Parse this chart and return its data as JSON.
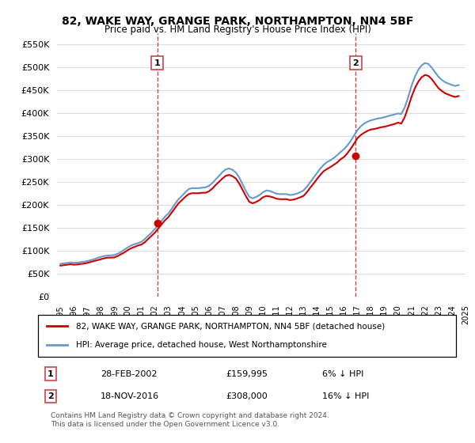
{
  "title": "82, WAKE WAY, GRANGE PARK, NORTHAMPTON, NN4 5BF",
  "subtitle": "Price paid vs. HM Land Registry's House Price Index (HPI)",
  "xlabel": "",
  "ylabel": "",
  "ylim": [
    0,
    575000
  ],
  "yticks": [
    0,
    50000,
    100000,
    150000,
    200000,
    250000,
    300000,
    350000,
    400000,
    450000,
    500000,
    550000
  ],
  "background_color": "#ffffff",
  "grid_color": "#dddddd",
  "sale1_date_idx": 7.17,
  "sale1_value": 159995,
  "sale2_date_idx": 21.88,
  "sale2_value": 308000,
  "legend_label_red": "82, WAKE WAY, GRANGE PARK, NORTHAMPTON, NN4 5BF (detached house)",
  "legend_label_blue": "HPI: Average price, detached house, West Northamptonshire",
  "annotation1_label": "1",
  "annotation1_date": "28-FEB-2002",
  "annotation1_price": "£159,995",
  "annotation1_pct": "6% ↓ HPI",
  "annotation2_label": "2",
  "annotation2_date": "18-NOV-2016",
  "annotation2_price": "£308,000",
  "annotation2_pct": "16% ↓ HPI",
  "footer": "Contains HM Land Registry data © Crown copyright and database right 2024.\nThis data is licensed under the Open Government Licence v3.0.",
  "hpi_x": [
    1995.0,
    1995.25,
    1995.5,
    1995.75,
    1996.0,
    1996.25,
    1996.5,
    1996.75,
    1997.0,
    1997.25,
    1997.5,
    1997.75,
    1998.0,
    1998.25,
    1998.5,
    1998.75,
    1999.0,
    1999.25,
    1999.5,
    1999.75,
    2000.0,
    2000.25,
    2000.5,
    2000.75,
    2001.0,
    2001.25,
    2001.5,
    2001.75,
    2002.0,
    2002.25,
    2002.5,
    2002.75,
    2003.0,
    2003.25,
    2003.5,
    2003.75,
    2004.0,
    2004.25,
    2004.5,
    2004.75,
    2005.0,
    2005.25,
    2005.5,
    2005.75,
    2006.0,
    2006.25,
    2006.5,
    2006.75,
    2007.0,
    2007.25,
    2007.5,
    2007.75,
    2008.0,
    2008.25,
    2008.5,
    2008.75,
    2009.0,
    2009.25,
    2009.5,
    2009.75,
    2010.0,
    2010.25,
    2010.5,
    2010.75,
    2011.0,
    2011.25,
    2011.5,
    2011.75,
    2012.0,
    2012.25,
    2012.5,
    2012.75,
    2013.0,
    2013.25,
    2013.5,
    2013.75,
    2014.0,
    2014.25,
    2014.5,
    2014.75,
    2015.0,
    2015.25,
    2015.5,
    2015.75,
    2016.0,
    2016.25,
    2016.5,
    2016.75,
    2017.0,
    2017.25,
    2017.5,
    2017.75,
    2018.0,
    2018.25,
    2018.5,
    2018.75,
    2019.0,
    2019.25,
    2019.5,
    2019.75,
    2020.0,
    2020.25,
    2020.5,
    2020.75,
    2021.0,
    2021.25,
    2021.5,
    2021.75,
    2022.0,
    2022.25,
    2022.5,
    2022.75,
    2023.0,
    2023.25,
    2023.5,
    2023.75,
    2024.0,
    2024.25,
    2024.5
  ],
  "hpi_y": [
    72000,
    73000,
    74000,
    75000,
    74000,
    74500,
    75500,
    76500,
    78000,
    80000,
    82000,
    85000,
    87000,
    89000,
    90000,
    90500,
    91000,
    94000,
    98000,
    103000,
    108000,
    112000,
    115000,
    117000,
    120000,
    126000,
    133000,
    140000,
    148000,
    157000,
    166000,
    175000,
    182000,
    192000,
    203000,
    213000,
    220000,
    228000,
    235000,
    237000,
    237000,
    237000,
    238000,
    239000,
    242000,
    248000,
    256000,
    264000,
    272000,
    278000,
    280000,
    277000,
    271000,
    260000,
    245000,
    230000,
    218000,
    215000,
    218000,
    222000,
    228000,
    232000,
    231000,
    228000,
    225000,
    224000,
    224000,
    224000,
    222000,
    223000,
    225000,
    228000,
    232000,
    240000,
    250000,
    260000,
    270000,
    280000,
    288000,
    294000,
    298000,
    303000,
    309000,
    316000,
    322000,
    330000,
    340000,
    352000,
    364000,
    372000,
    378000,
    382000,
    385000,
    387000,
    389000,
    390000,
    392000,
    394000,
    396000,
    398000,
    400000,
    399000,
    413000,
    435000,
    460000,
    480000,
    495000,
    505000,
    510000,
    508000,
    500000,
    490000,
    480000,
    473000,
    468000,
    465000,
    462000,
    460000,
    462000
  ],
  "price_x": [
    1995.0,
    1995.25,
    1995.5,
    1995.75,
    1996.0,
    1996.25,
    1996.5,
    1996.75,
    1997.0,
    1997.25,
    1997.5,
    1997.75,
    1998.0,
    1998.25,
    1998.5,
    1998.75,
    1999.0,
    1999.25,
    1999.5,
    1999.75,
    2000.0,
    2000.25,
    2000.5,
    2000.75,
    2001.0,
    2001.25,
    2001.5,
    2001.75,
    2002.0,
    2002.25,
    2002.5,
    2002.75,
    2003.0,
    2003.25,
    2003.5,
    2003.75,
    2004.0,
    2004.25,
    2004.5,
    2004.75,
    2005.0,
    2005.25,
    2005.5,
    2005.75,
    2006.0,
    2006.25,
    2006.5,
    2006.75,
    2007.0,
    2007.25,
    2007.5,
    2007.75,
    2008.0,
    2008.25,
    2008.5,
    2008.75,
    2009.0,
    2009.25,
    2009.5,
    2009.75,
    2010.0,
    2010.25,
    2010.5,
    2010.75,
    2011.0,
    2011.25,
    2011.5,
    2011.75,
    2012.0,
    2012.25,
    2012.5,
    2012.75,
    2013.0,
    2013.25,
    2013.5,
    2013.75,
    2014.0,
    2014.25,
    2014.5,
    2014.75,
    2015.0,
    2015.25,
    2015.5,
    2015.75,
    2016.0,
    2016.25,
    2016.5,
    2016.75,
    2017.0,
    2017.25,
    2017.5,
    2017.75,
    2018.0,
    2018.25,
    2018.5,
    2018.75,
    2019.0,
    2019.25,
    2019.5,
    2019.75,
    2020.0,
    2020.25,
    2020.5,
    2020.75,
    2021.0,
    2021.25,
    2021.5,
    2021.75,
    2022.0,
    2022.25,
    2022.5,
    2022.75,
    2023.0,
    2023.25,
    2023.5,
    2023.75,
    2024.0,
    2024.25,
    2024.5
  ],
  "price_y": [
    68000,
    69000,
    70000,
    71000,
    70000,
    70500,
    71500,
    72500,
    74000,
    76000,
    78000,
    80000,
    82000,
    84000,
    85500,
    85500,
    86000,
    89000,
    93000,
    97000,
    102000,
    106000,
    109000,
    112000,
    114000,
    119000,
    126000,
    133000,
    140000,
    149000,
    158000,
    167000,
    174000,
    184000,
    194000,
    204000,
    211000,
    218000,
    224000,
    226000,
    226000,
    226000,
    227000,
    227000,
    230000,
    236000,
    244000,
    251000,
    258000,
    264000,
    266000,
    263000,
    258000,
    247000,
    233000,
    219000,
    207000,
    204000,
    207000,
    211000,
    217000,
    220000,
    219000,
    217000,
    214000,
    213000,
    213000,
    213000,
    211000,
    212000,
    214000,
    217000,
    220000,
    228000,
    238000,
    247000,
    257000,
    266000,
    274000,
    279000,
    283000,
    288000,
    293000,
    300000,
    305000,
    313000,
    323000,
    334000,
    346000,
    353000,
    358000,
    362000,
    365000,
    366000,
    368000,
    370000,
    371000,
    373000,
    375000,
    377000,
    380000,
    378000,
    392000,
    413000,
    436000,
    455000,
    469000,
    479000,
    484000,
    482000,
    475000,
    465000,
    455000,
    449000,
    444000,
    441000,
    438000,
    436000,
    438000
  ]
}
